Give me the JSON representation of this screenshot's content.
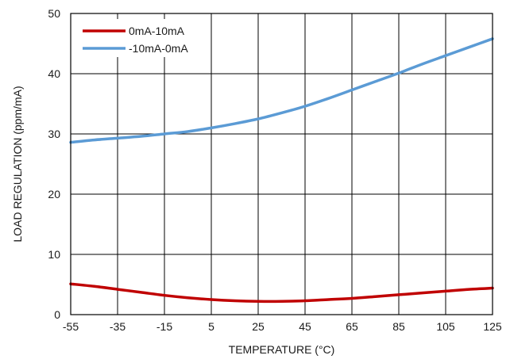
{
  "chart_data": {
    "type": "line",
    "title": "",
    "xlabel": "TEMPERATURE (°C)",
    "ylabel": "LOAD REGULATION (ppm/mA)",
    "xlim": [
      -55,
      125
    ],
    "ylim": [
      0,
      50
    ],
    "x_ticks": [
      -55,
      -35,
      -15,
      5,
      25,
      45,
      65,
      85,
      105,
      125
    ],
    "y_ticks": [
      0,
      10,
      20,
      30,
      40,
      50
    ],
    "grid": true,
    "legend_position": "top-left",
    "series": [
      {
        "name": "0mA-10mA",
        "color": "#c00000",
        "x": [
          -55,
          -45,
          -35,
          -25,
          -15,
          -5,
          5,
          15,
          25,
          35,
          45,
          55,
          65,
          75,
          85,
          95,
          105,
          115,
          125
        ],
        "y": [
          5.1,
          4.7,
          4.2,
          3.7,
          3.2,
          2.8,
          2.5,
          2.3,
          2.2,
          2.2,
          2.3,
          2.5,
          2.7,
          3.0,
          3.3,
          3.6,
          3.9,
          4.2,
          4.4
        ]
      },
      {
        "name": "-10mA-0mA",
        "color": "#5b9bd5",
        "x": [
          -55,
          -45,
          -35,
          -25,
          -15,
          -5,
          5,
          15,
          25,
          35,
          45,
          55,
          65,
          75,
          85,
          95,
          105,
          115,
          125
        ],
        "y": [
          28.6,
          29.0,
          29.3,
          29.6,
          30.0,
          30.4,
          31.0,
          31.7,
          32.5,
          33.5,
          34.6,
          35.9,
          37.3,
          38.7,
          40.1,
          41.6,
          43.0,
          44.4,
          45.8
        ]
      }
    ]
  }
}
